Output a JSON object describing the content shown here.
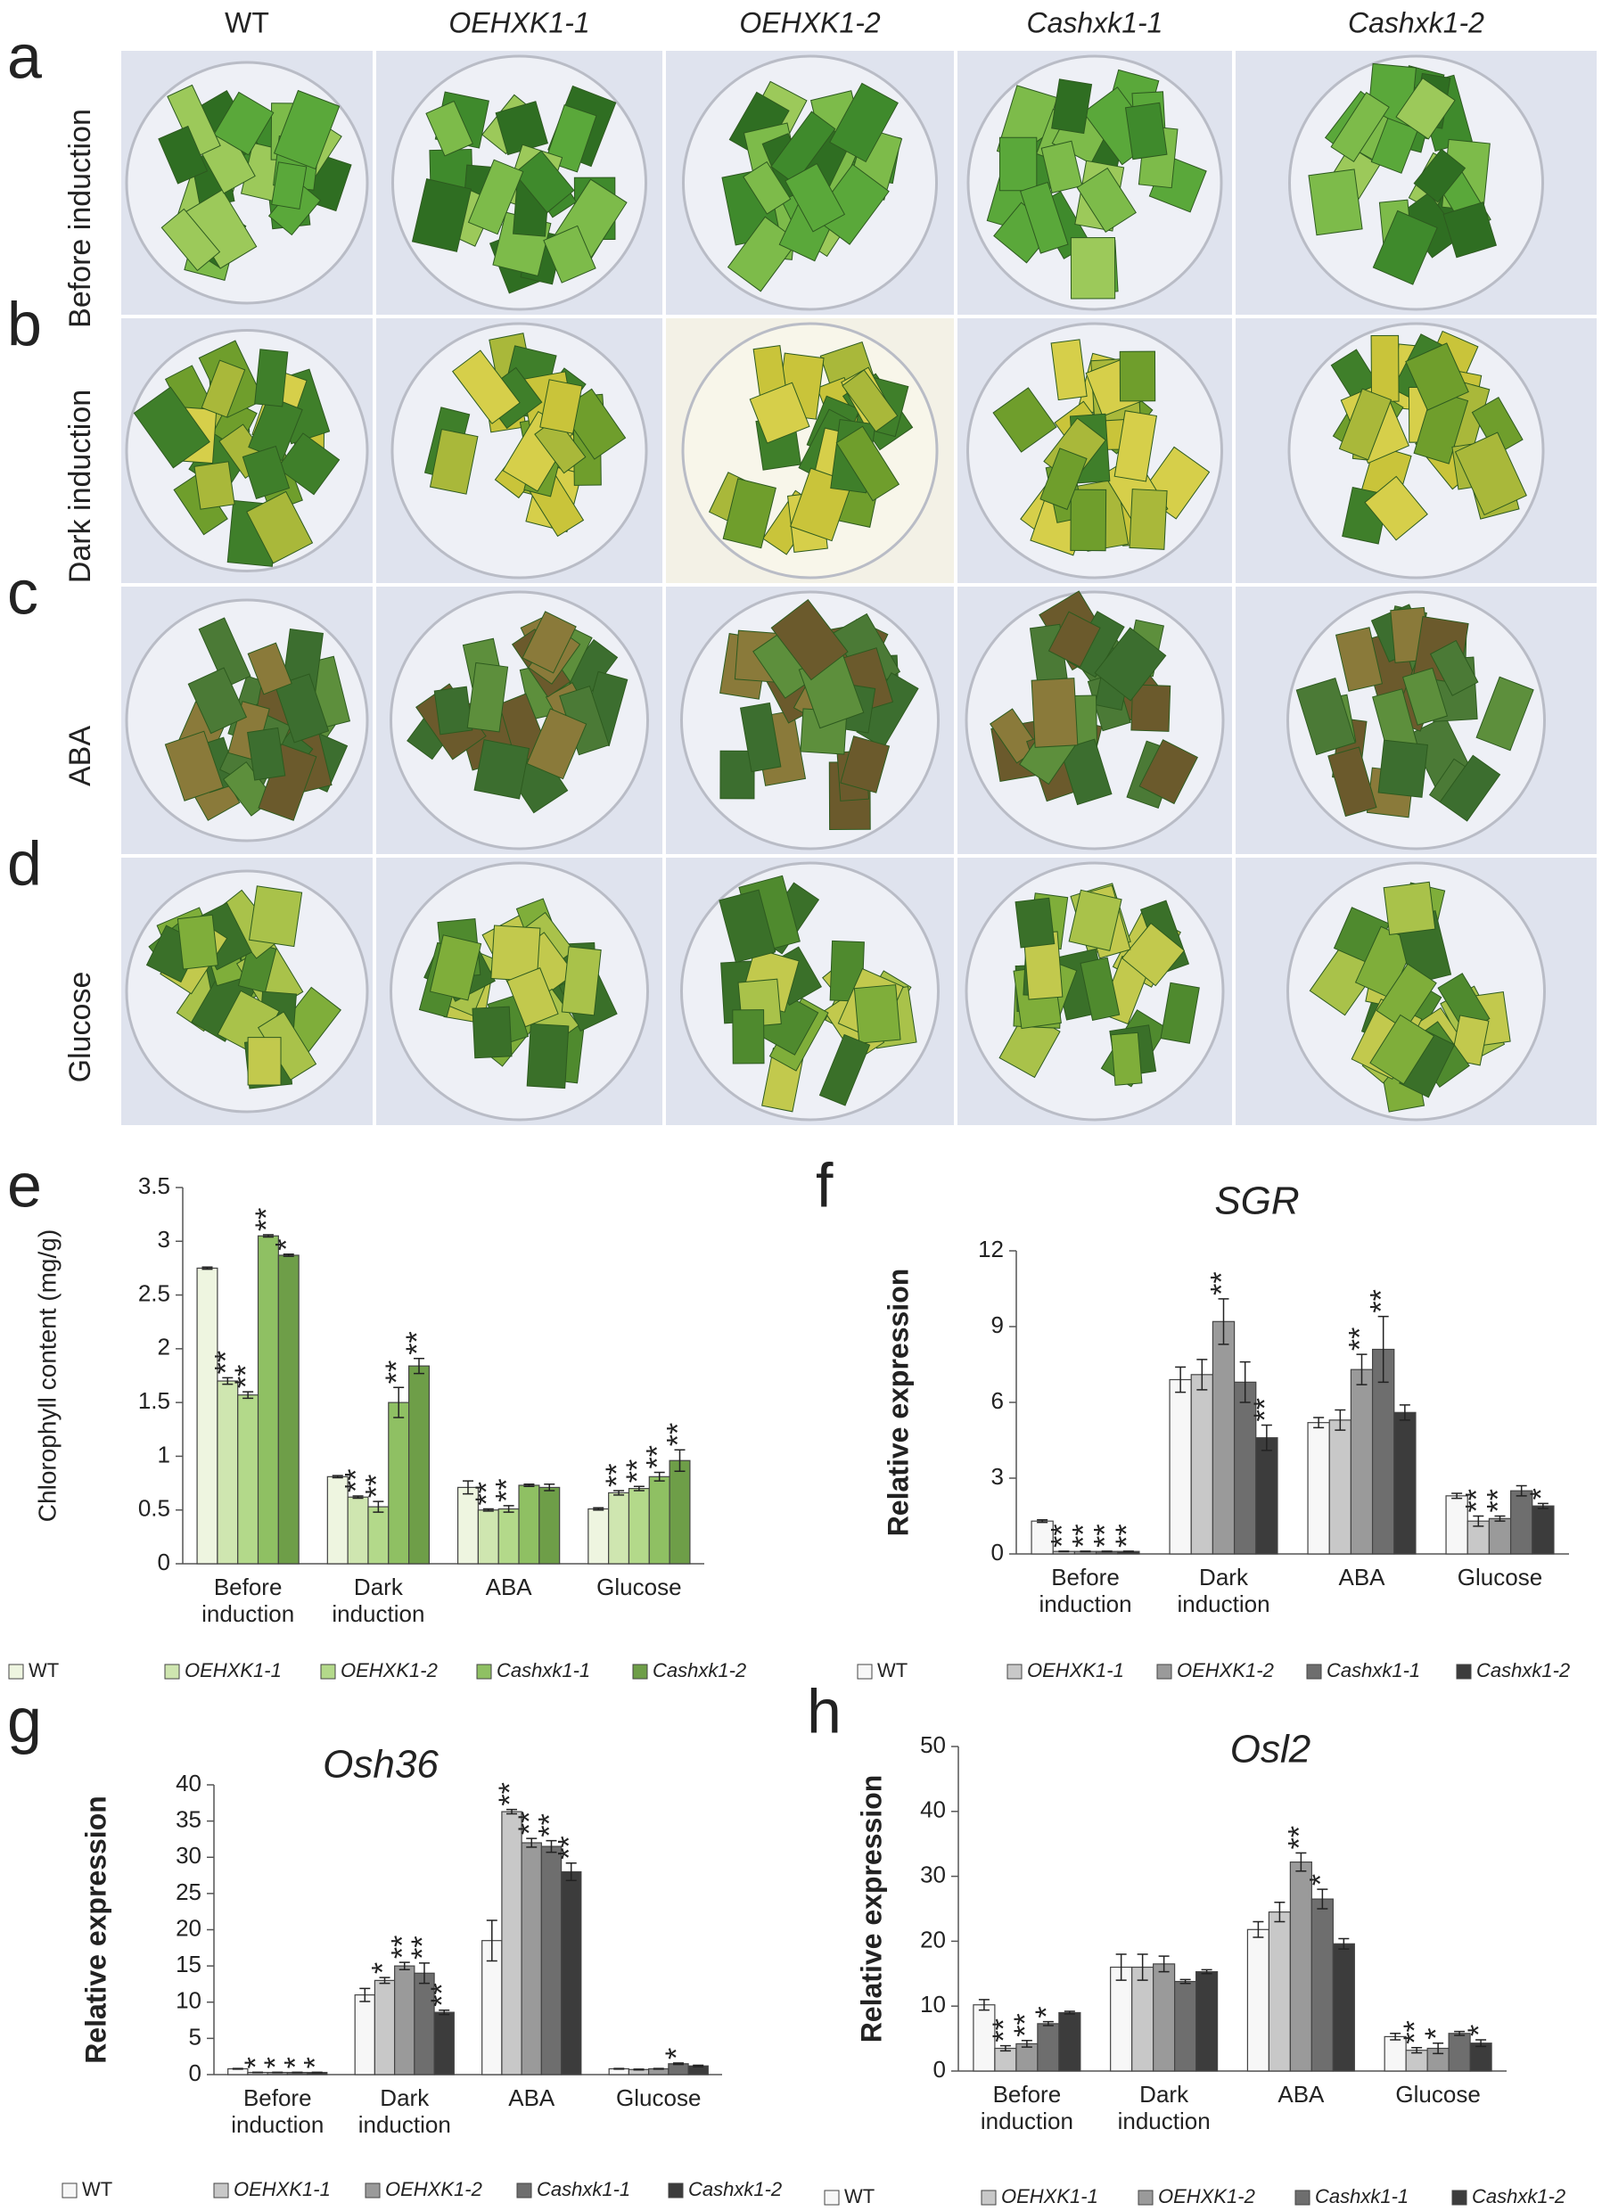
{
  "photo_grid": {
    "panels": [
      "a",
      "b",
      "c",
      "d"
    ],
    "columns": [
      "WT",
      "OEHXK1-1",
      "OEHXK1-2",
      "Cashxk1-1",
      "Cashxk1-2"
    ],
    "rows": [
      "Before induction",
      "Dark induction",
      "ABA",
      "Glucose"
    ]
  },
  "chart_data": [
    {
      "type": "bar",
      "panel_label": "e",
      "ylabel": "Chlorophyll content (mg/g)",
      "categories": [
        "Before induction",
        "Dark induction",
        "ABA",
        "Glucose"
      ],
      "ylim": [
        0,
        3.5
      ],
      "yticks": [
        0,
        0.5,
        1,
        1.5,
        2,
        2.5,
        3,
        3.5
      ],
      "series": [
        {
          "name": "WT",
          "color": "#eef5e0",
          "values": [
            2.75,
            0.81,
            0.71,
            0.51
          ],
          "errors": [
            0.01,
            0.01,
            0.06,
            0.01
          ],
          "stars": [
            null,
            null,
            null,
            null
          ]
        },
        {
          "name": "OEHXK1-1",
          "color": "#cfe6b0",
          "values": [
            1.7,
            0.62,
            0.5,
            0.66
          ],
          "errors": [
            0.03,
            0.01,
            0.01,
            0.02
          ],
          "stars": [
            "**",
            "**",
            "**",
            "**"
          ]
        },
        {
          "name": "OEHXK1-2",
          "color": "#b3d98a",
          "values": [
            1.57,
            0.53,
            0.51,
            0.7
          ],
          "errors": [
            0.03,
            0.05,
            0.03,
            0.02
          ],
          "stars": [
            "**",
            "**",
            "**",
            "**"
          ]
        },
        {
          "name": "Cashxk1-1",
          "color": "#8fc063",
          "values": [
            3.05,
            1.5,
            0.73,
            0.81
          ],
          "errors": [
            0.01,
            0.14,
            0.01,
            0.04
          ],
          "stars": [
            "**",
            "**",
            null,
            "**"
          ]
        },
        {
          "name": "Cashxk1-2",
          "color": "#6e9e48",
          "values": [
            2.87,
            1.84,
            0.71,
            0.96
          ],
          "errors": [
            0.01,
            0.07,
            0.03,
            0.1
          ],
          "stars": [
            "*",
            "**",
            null,
            "**"
          ]
        }
      ]
    },
    {
      "type": "bar",
      "panel_label": "f",
      "title": "SGR",
      "ylabel": "Relative expression",
      "categories": [
        "Before induction",
        "Dark induction",
        "ABA",
        "Glucose"
      ],
      "ylim": [
        0,
        12
      ],
      "yticks": [
        0,
        3,
        6,
        9,
        12
      ],
      "series": [
        {
          "name": "WT",
          "color": "#f7f7f7",
          "values": [
            1.3,
            6.9,
            5.2,
            2.3
          ],
          "errors": [
            0.05,
            0.5,
            0.2,
            0.1
          ],
          "stars": [
            null,
            null,
            null,
            null
          ]
        },
        {
          "name": "OEHXK1-1",
          "color": "#c8c8c8",
          "values": [
            0.1,
            7.1,
            5.3,
            1.3
          ],
          "errors": [
            0.01,
            0.6,
            0.4,
            0.2
          ],
          "stars": [
            "**",
            null,
            null,
            "**"
          ]
        },
        {
          "name": "OEHXK1-2",
          "color": "#9a9a9a",
          "values": [
            0.1,
            9.2,
            7.3,
            1.4
          ],
          "errors": [
            0.01,
            0.9,
            0.6,
            0.1
          ],
          "stars": [
            "**",
            "**",
            "**",
            "**"
          ]
        },
        {
          "name": "Cashxk1-1",
          "color": "#6e6e6e",
          "values": [
            0.1,
            6.8,
            8.1,
            2.5
          ],
          "errors": [
            0.01,
            0.8,
            1.3,
            0.2
          ],
          "stars": [
            "**",
            null,
            "**",
            null
          ]
        },
        {
          "name": "Cashxk1-2",
          "color": "#3c3c3c",
          "values": [
            0.1,
            4.6,
            5.6,
            1.9
          ],
          "errors": [
            0.01,
            0.5,
            0.3,
            0.1
          ],
          "stars": [
            "**",
            "**",
            null,
            "*"
          ]
        }
      ]
    },
    {
      "type": "bar",
      "panel_label": "g",
      "title": "Osh36",
      "ylabel": "Relative expression",
      "categories": [
        "Before induction",
        "Dark induction",
        "ABA",
        "Glucose"
      ],
      "ylim": [
        0,
        40
      ],
      "yticks": [
        0,
        5,
        10,
        15,
        20,
        25,
        30,
        35,
        40
      ],
      "series": [
        {
          "name": "WT",
          "color": "#f7f7f7",
          "values": [
            0.8,
            11,
            18.5,
            0.8
          ],
          "errors": [
            0.05,
            0.9,
            2.8,
            0.05
          ],
          "stars": [
            null,
            null,
            null,
            null
          ]
        },
        {
          "name": "OEHXK1-1",
          "color": "#c8c8c8",
          "values": [
            0.3,
            13,
            36.3,
            0.7
          ],
          "errors": [
            0.02,
            0.4,
            0.3,
            0.05
          ],
          "stars": [
            "*",
            "*",
            "**",
            null
          ]
        },
        {
          "name": "OEHXK1-2",
          "color": "#9a9a9a",
          "values": [
            0.3,
            15,
            32,
            0.8
          ],
          "errors": [
            0.02,
            0.5,
            0.6,
            0.05
          ],
          "stars": [
            "*",
            "**",
            "**",
            null
          ]
        },
        {
          "name": "Cashxk1-1",
          "color": "#6e6e6e",
          "values": [
            0.3,
            14,
            31.5,
            1.5
          ],
          "errors": [
            0.02,
            1.4,
            0.8,
            0.1
          ],
          "stars": [
            "*",
            "**",
            "**",
            "*"
          ]
        },
        {
          "name": "Cashxk1-2",
          "color": "#3c3c3c",
          "values": [
            0.3,
            8.6,
            28,
            1.2
          ],
          "errors": [
            0.02,
            0.3,
            1.2,
            0.1
          ],
          "stars": [
            "*",
            "**",
            "**",
            null
          ]
        }
      ]
    },
    {
      "type": "bar",
      "panel_label": "h",
      "title": "Osl2",
      "ylabel": "Relative expression",
      "categories": [
        "Before induction",
        "Dark induction",
        "ABA",
        "Glucose"
      ],
      "ylim": [
        0,
        50
      ],
      "yticks": [
        0,
        10,
        20,
        30,
        40,
        50
      ],
      "series": [
        {
          "name": "WT",
          "color": "#f7f7f7",
          "values": [
            10.2,
            16,
            21.8,
            5.3
          ],
          "errors": [
            0.8,
            2,
            1.2,
            0.5
          ],
          "stars": [
            null,
            null,
            null,
            null
          ]
        },
        {
          "name": "OEHXK1-1",
          "color": "#c8c8c8",
          "values": [
            3.5,
            16,
            24.5,
            3.2
          ],
          "errors": [
            0.4,
            2,
            1.5,
            0.4
          ],
          "stars": [
            "**",
            null,
            null,
            "**"
          ]
        },
        {
          "name": "OEHXK1-2",
          "color": "#9a9a9a",
          "values": [
            4.2,
            16.5,
            32.2,
            3.5
          ],
          "errors": [
            0.5,
            1.2,
            1.4,
            0.8
          ],
          "stars": [
            "**",
            null,
            "**",
            "*"
          ]
        },
        {
          "name": "Cashxk1-1",
          "color": "#6e6e6e",
          "values": [
            7.3,
            13.8,
            26.5,
            5.8
          ],
          "errors": [
            0.3,
            0.3,
            1.5,
            0.3
          ],
          "stars": [
            "*",
            null,
            "*",
            null
          ]
        },
        {
          "name": "Cashxk1-2",
          "color": "#3c3c3c",
          "values": [
            9,
            15.3,
            19.6,
            4.3
          ],
          "errors": [
            0.2,
            0.3,
            0.8,
            0.5
          ],
          "stars": [
            null,
            null,
            null,
            "*"
          ]
        }
      ]
    }
  ]
}
